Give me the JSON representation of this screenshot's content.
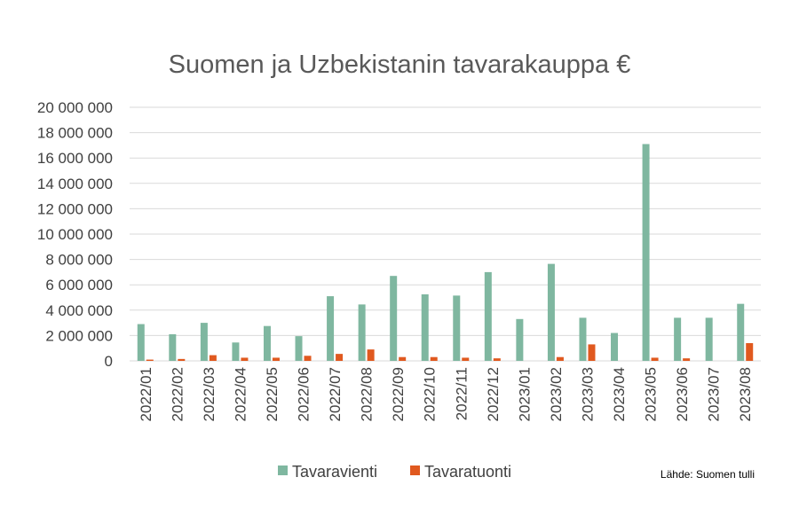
{
  "chart_data": {
    "type": "bar",
    "title": "Suomen ja Uzbekistanin tavarakauppa €",
    "source": "Lähde: Suomen tulli",
    "categories": [
      "2022/01",
      "2022/02",
      "2022/03",
      "2022/04",
      "2022/05",
      "2022/06",
      "2022/07",
      "2022/08",
      "2022/09",
      "2022/10",
      "2022/11",
      "2022/12",
      "2023/01",
      "2023/02",
      "2023/03",
      "2023/04",
      "2023/05",
      "2023/06",
      "2023/07",
      "2023/08"
    ],
    "series": [
      {
        "name": "Tavaravienti",
        "color": "#7fb7a0",
        "values": [
          2900000,
          2100000,
          3000000,
          1450000,
          2750000,
          1950000,
          5100000,
          4450000,
          6700000,
          5250000,
          5150000,
          7000000,
          3300000,
          7650000,
          3400000,
          2200000,
          17100000,
          3400000,
          3400000,
          4500000
        ]
      },
      {
        "name": "Tavaratuonti",
        "color": "#e0591f",
        "values": [
          100000,
          150000,
          450000,
          250000,
          250000,
          400000,
          550000,
          900000,
          300000,
          300000,
          250000,
          200000,
          0,
          300000,
          1300000,
          0,
          250000,
          200000,
          0,
          1400000
        ]
      }
    ],
    "ylim": [
      0,
      20000000
    ],
    "yticks": [
      "0",
      "2 000 000",
      "4 000 000",
      "6 000 000",
      "8 000 000",
      "10 000 000",
      "12 000 000",
      "14 000 000",
      "16 000 000",
      "18 000 000",
      "20 000 000"
    ],
    "grid": true,
    "legend": "bottom"
  }
}
